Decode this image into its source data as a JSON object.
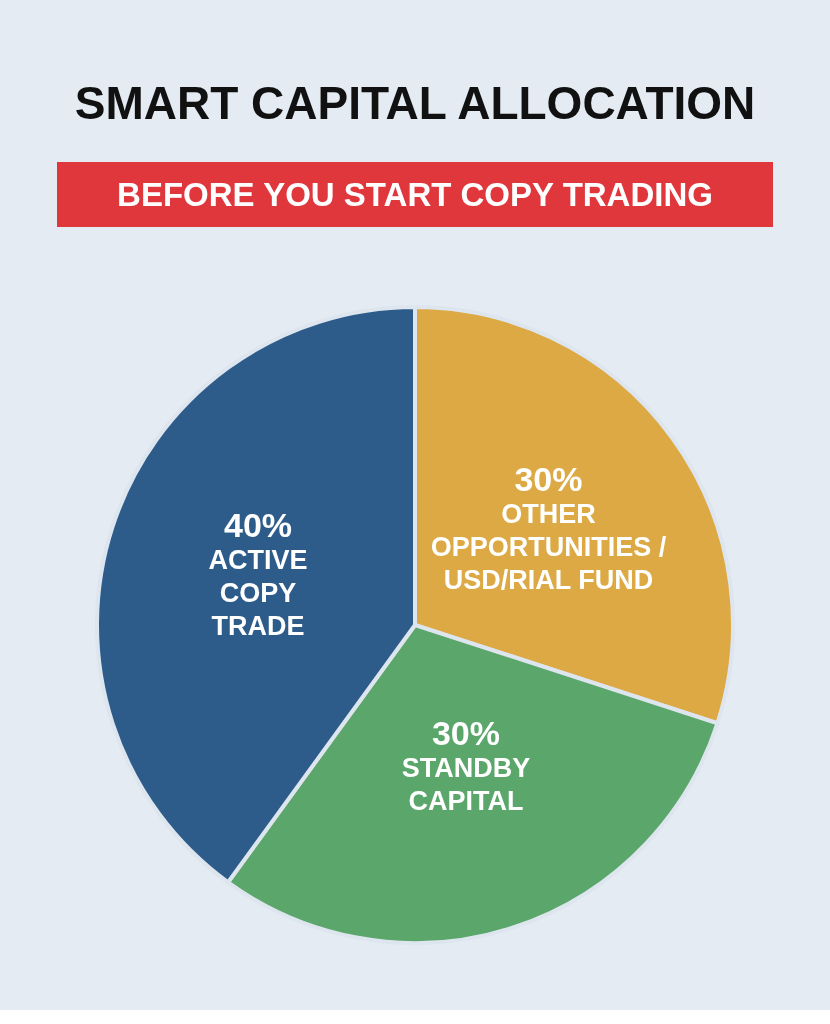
{
  "chart_data": {
    "type": "pie",
    "title": "SMART CAPITAL ALLOCATION",
    "subtitle": "BEFORE YOU START COPY TRADING",
    "categories": [
      "OTHER OPPORTUNITIES / USD/RIAL FUND",
      "STANDBY CAPITAL",
      "ACTIVE COPY TRADE"
    ],
    "values": [
      30,
      30,
      40
    ],
    "colors": [
      "#dca944",
      "#5ba66a",
      "#2d5c8b"
    ],
    "value_labels": [
      "30%",
      "30%",
      "40%"
    ],
    "legend": false
  }
}
